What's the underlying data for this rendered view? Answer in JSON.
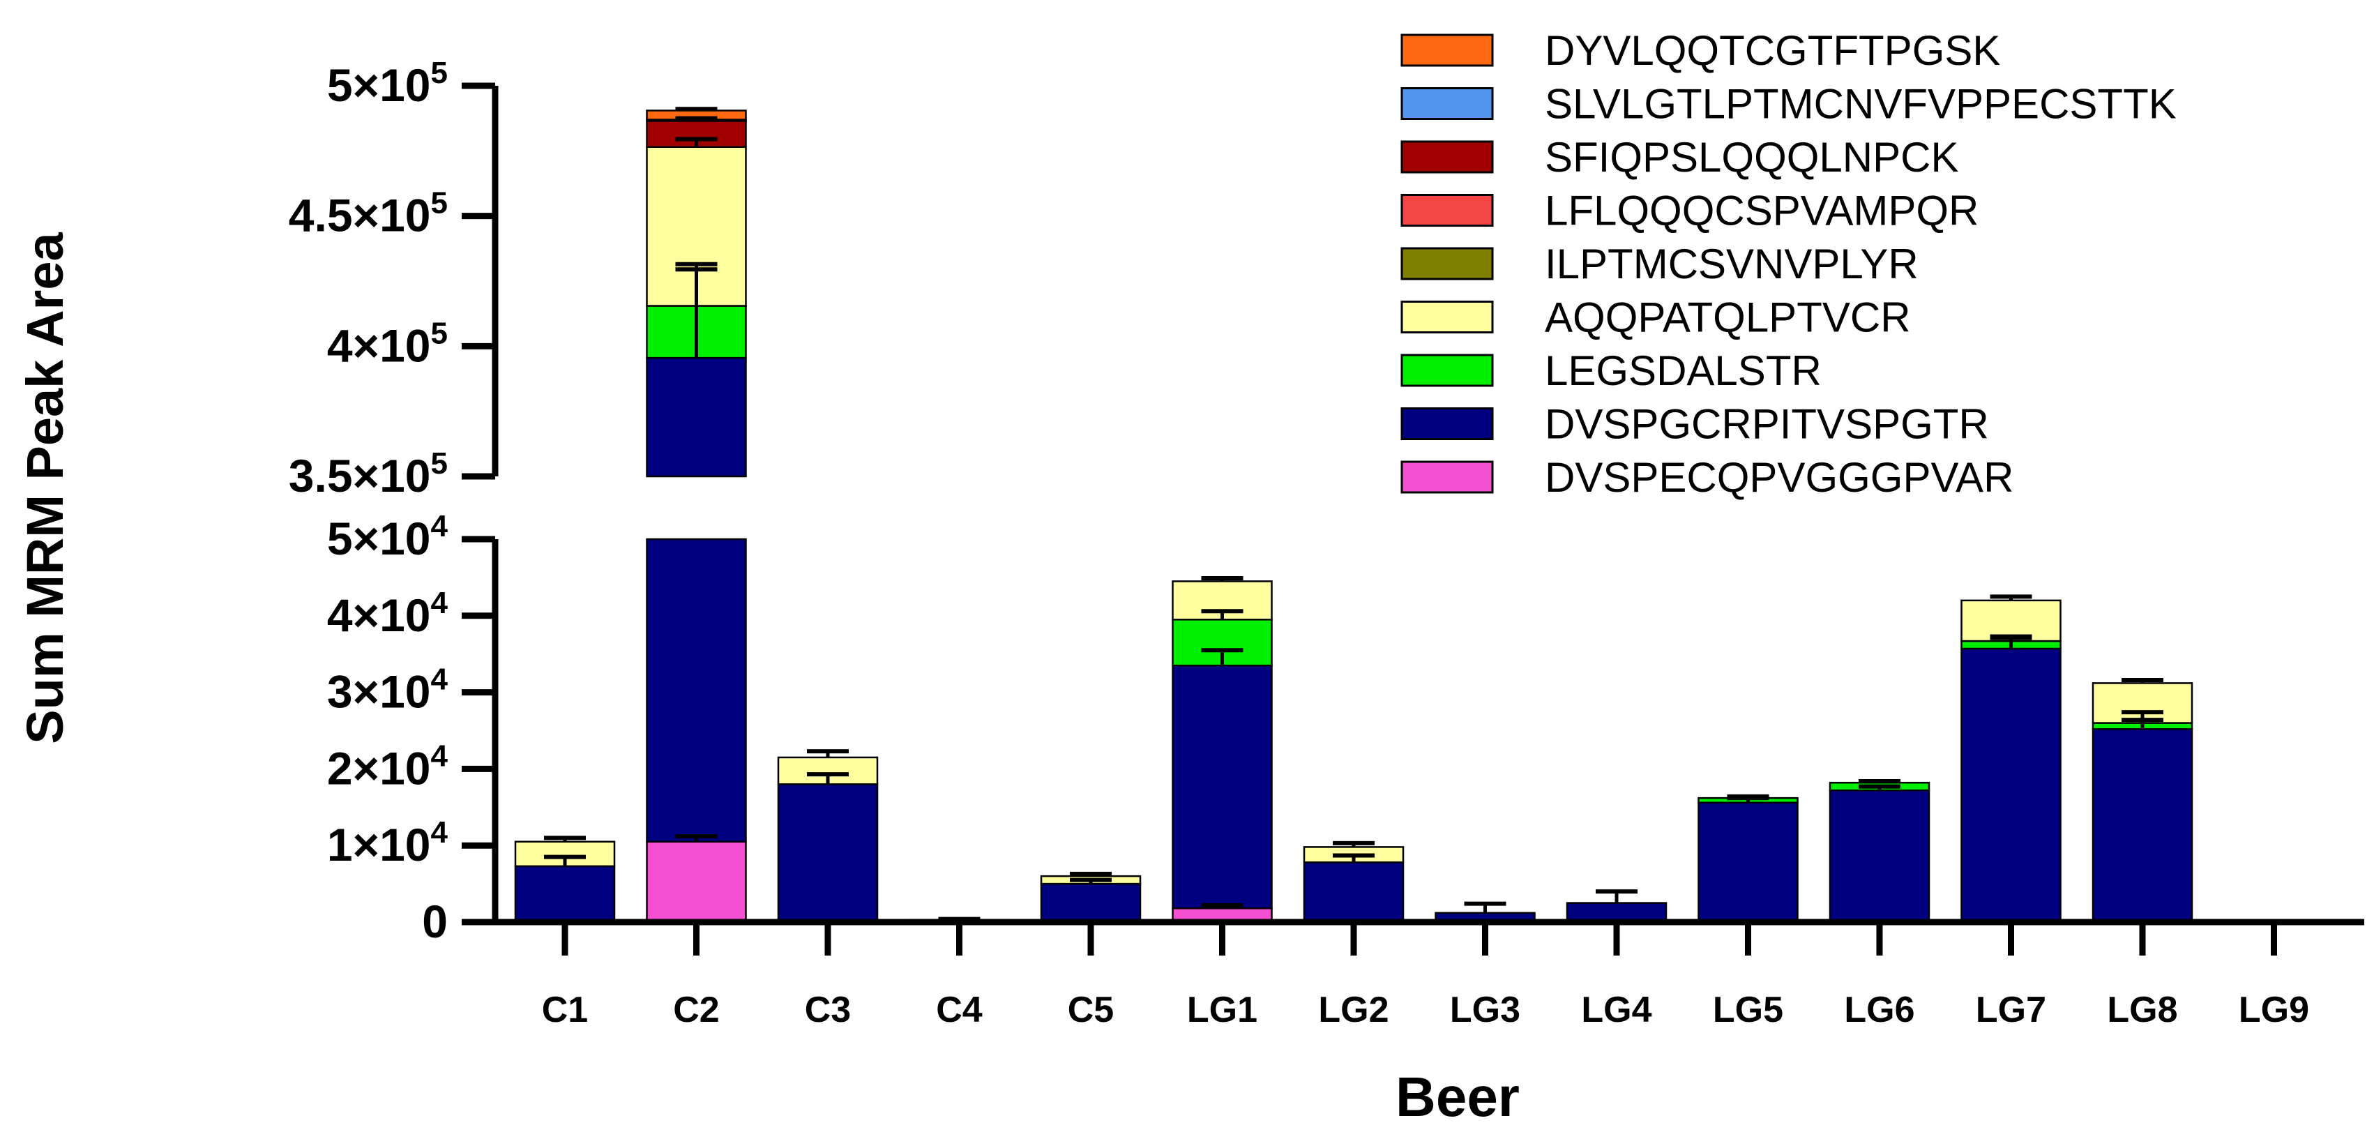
{
  "chart_data": {
    "type": "bar",
    "stacked": true,
    "broken_y_axis": true,
    "xlabel": "Beer",
    "ylabel": "Sum MRM Peak Area",
    "categories": [
      "C1",
      "C2",
      "C3",
      "C4",
      "C5",
      "LG1",
      "LG2",
      "LG3",
      "LG4",
      "LG5",
      "LG6",
      "LG7",
      "LG8",
      "LG9"
    ],
    "segments": [
      {
        "name": "lower",
        "ylim": [
          0,
          50000
        ]
      },
      {
        "name": "upper",
        "ylim": [
          350000,
          500000
        ]
      }
    ],
    "yticks_lower": [
      {
        "value": 0,
        "base": "0",
        "exp": ""
      },
      {
        "value": 10000,
        "base": "1×10",
        "exp": "4"
      },
      {
        "value": 20000,
        "base": "2×10",
        "exp": "4"
      },
      {
        "value": 30000,
        "base": "3×10",
        "exp": "4"
      },
      {
        "value": 40000,
        "base": "4×10",
        "exp": "4"
      },
      {
        "value": 50000,
        "base": "5×10",
        "exp": "4"
      }
    ],
    "yticks_upper": [
      {
        "value": 350000,
        "base": "3.5×10",
        "exp": "5"
      },
      {
        "value": 400000,
        "base": "4×10",
        "exp": "5"
      },
      {
        "value": 450000,
        "base": "4.5×10",
        "exp": "5"
      },
      {
        "value": 500000,
        "base": "5×10",
        "exp": "5"
      }
    ],
    "series": [
      {
        "name": "DVSPECQPVGGGPVAR",
        "color": "#F54FD2",
        "values": [
          0,
          10500,
          0,
          0,
          0,
          1800,
          0,
          0,
          0,
          0,
          0,
          0,
          0,
          0
        ],
        "errors": [
          0,
          700,
          0,
          0,
          0,
          400,
          0,
          0,
          0,
          0,
          0,
          0,
          0,
          0
        ]
      },
      {
        "name": "DVSPGCRPITVSPGTR",
        "color": "#000080",
        "values": [
          7300,
          385000,
          18000,
          300,
          5000,
          31700,
          7800,
          1200,
          2500,
          15600,
          17200,
          35700,
          25200,
          0
        ],
        "errors": [
          1200,
          34000,
          1300,
          100,
          500,
          2000,
          900,
          1200,
          1500,
          600,
          500,
          1600,
          1200,
          0
        ]
      },
      {
        "name": "LEGSDALSTR",
        "color": "#00F000",
        "values": [
          0,
          20000,
          0,
          0,
          0,
          6000,
          0,
          0,
          0,
          600,
          1000,
          1000,
          800,
          0
        ],
        "errors": [
          0,
          16000,
          0,
          0,
          0,
          1100,
          0,
          0,
          0,
          200,
          200,
          400,
          1400,
          0
        ]
      },
      {
        "name": "AQQPATQLPTVCR",
        "color": "#FFFFA0",
        "values": [
          3200,
          61000,
          3500,
          0,
          1000,
          5000,
          2000,
          0,
          0,
          0,
          0,
          5300,
          5200,
          0
        ],
        "errors": [
          500,
          3000,
          800,
          0,
          300,
          400,
          500,
          0,
          0,
          0,
          0,
          500,
          400,
          0
        ]
      },
      {
        "name": "ILPTMCSVNVPLYR",
        "color": "#808000",
        "values": [
          0,
          0,
          0,
          0,
          0,
          0,
          0,
          0,
          0,
          0,
          0,
          0,
          0,
          0
        ],
        "errors": [
          0,
          0,
          0,
          0,
          0,
          0,
          0,
          0,
          0,
          0,
          0,
          0,
          0,
          0
        ]
      },
      {
        "name": "LFLQQQCSPVAMPQR",
        "color": "#F54646",
        "values": [
          0,
          0,
          0,
          0,
          0,
          0,
          0,
          0,
          0,
          0,
          0,
          0,
          0,
          0
        ],
        "errors": [
          0,
          0,
          0,
          0,
          0,
          0,
          0,
          0,
          0,
          0,
          0,
          0,
          0,
          0
        ]
      },
      {
        "name": "SFIQPSLQQQLNPCK",
        "color": "#A00000",
        "values": [
          0,
          10000,
          0,
          0,
          0,
          0,
          0,
          0,
          0,
          0,
          0,
          0,
          0,
          0
        ],
        "errors": [
          0,
          1000,
          0,
          0,
          0,
          0,
          0,
          0,
          0,
          0,
          0,
          0,
          0,
          0
        ]
      },
      {
        "name": "SLVLGTLPTMCNVFVPPECSTTK",
        "color": "#5096F0",
        "values": [
          0,
          500,
          0,
          0,
          0,
          0,
          0,
          0,
          0,
          0,
          0,
          0,
          0,
          0
        ],
        "errors": [
          0,
          0,
          0,
          0,
          0,
          0,
          0,
          0,
          0,
          0,
          0,
          0,
          0,
          0
        ]
      },
      {
        "name": "DYVLQQTCGTFTPGSK",
        "color": "#FF6A10",
        "values": [
          0,
          3500,
          0,
          0,
          0,
          0,
          0,
          0,
          0,
          0,
          0,
          0,
          0,
          0
        ],
        "errors": [
          0,
          600,
          0,
          0,
          0,
          0,
          0,
          0,
          0,
          0,
          0,
          0,
          0,
          0
        ]
      }
    ],
    "legend_order": [
      "DYVLQQTCGTFTPGSK",
      "SLVLGTLPTMCNVFVPPECSTTK",
      "SFIQPSLQQQLNPCK",
      "LFLQQQCSPVAMPQR",
      "ILPTMCSVNVPLYR",
      "AQQPATQLPTVCR",
      "LEGSDALSTR",
      "DVSPGCRPITVSPGTR",
      "DVSPECQPVGGGPVAR"
    ],
    "legend_position": "top-right",
    "grid": false
  }
}
